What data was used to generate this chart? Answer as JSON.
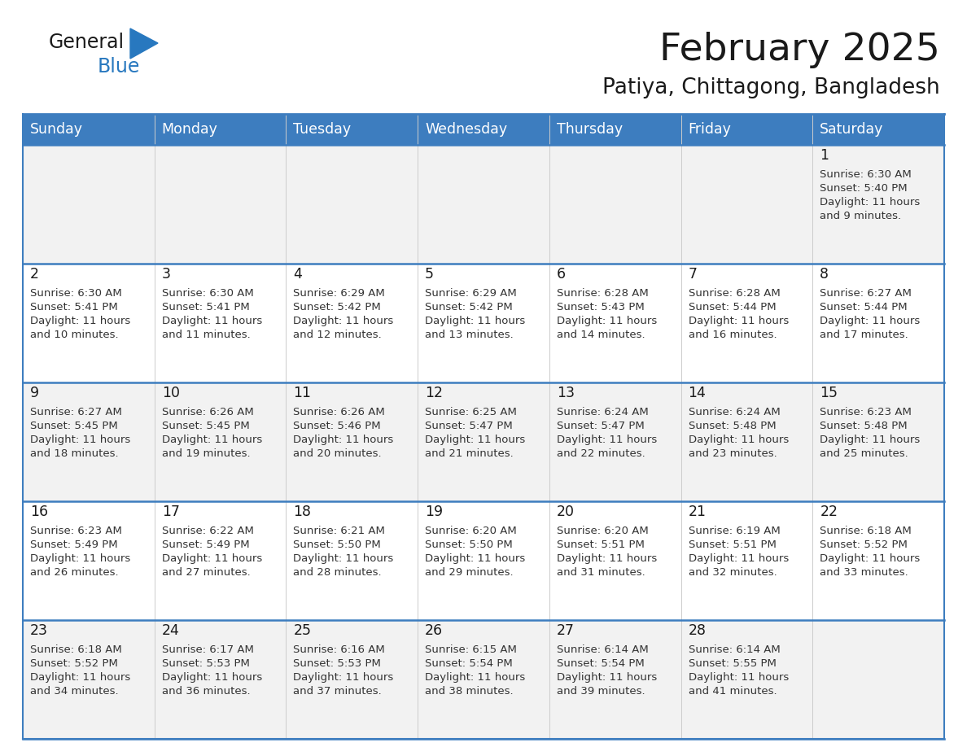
{
  "title": "February 2025",
  "subtitle": "Patiya, Chittagong, Bangladesh",
  "header_color": "#3d7dbf",
  "header_text_color": "#ffffff",
  "row0_bg": "#e8e8e8",
  "row_odd_bg": "#f2f2f2",
  "row_even_bg": "#ffffff",
  "border_color": "#3d7dbf",
  "days_of_week": [
    "Sunday",
    "Monday",
    "Tuesday",
    "Wednesday",
    "Thursday",
    "Friday",
    "Saturday"
  ],
  "title_color": "#1a1a1a",
  "subtitle_color": "#1a1a1a",
  "day_num_color": "#1a1a1a",
  "info_color": "#333333",
  "logo_general_color": "#1a1a1a",
  "logo_blue_color": "#2878bf",
  "calendar": [
    [
      null,
      null,
      null,
      null,
      null,
      null,
      {
        "day": 1,
        "sunrise": "6:30 AM",
        "sunset": "5:40 PM",
        "daylight": "11 hours and 9 minutes."
      }
    ],
    [
      {
        "day": 2,
        "sunrise": "6:30 AM",
        "sunset": "5:41 PM",
        "daylight": "11 hours and 10 minutes."
      },
      {
        "day": 3,
        "sunrise": "6:30 AM",
        "sunset": "5:41 PM",
        "daylight": "11 hours and 11 minutes."
      },
      {
        "day": 4,
        "sunrise": "6:29 AM",
        "sunset": "5:42 PM",
        "daylight": "11 hours and 12 minutes."
      },
      {
        "day": 5,
        "sunrise": "6:29 AM",
        "sunset": "5:42 PM",
        "daylight": "11 hours and 13 minutes."
      },
      {
        "day": 6,
        "sunrise": "6:28 AM",
        "sunset": "5:43 PM",
        "daylight": "11 hours and 14 minutes."
      },
      {
        "day": 7,
        "sunrise": "6:28 AM",
        "sunset": "5:44 PM",
        "daylight": "11 hours and 16 minutes."
      },
      {
        "day": 8,
        "sunrise": "6:27 AM",
        "sunset": "5:44 PM",
        "daylight": "11 hours and 17 minutes."
      }
    ],
    [
      {
        "day": 9,
        "sunrise": "6:27 AM",
        "sunset": "5:45 PM",
        "daylight": "11 hours and 18 minutes."
      },
      {
        "day": 10,
        "sunrise": "6:26 AM",
        "sunset": "5:45 PM",
        "daylight": "11 hours and 19 minutes."
      },
      {
        "day": 11,
        "sunrise": "6:26 AM",
        "sunset": "5:46 PM",
        "daylight": "11 hours and 20 minutes."
      },
      {
        "day": 12,
        "sunrise": "6:25 AM",
        "sunset": "5:47 PM",
        "daylight": "11 hours and 21 minutes."
      },
      {
        "day": 13,
        "sunrise": "6:24 AM",
        "sunset": "5:47 PM",
        "daylight": "11 hours and 22 minutes."
      },
      {
        "day": 14,
        "sunrise": "6:24 AM",
        "sunset": "5:48 PM",
        "daylight": "11 hours and 23 minutes."
      },
      {
        "day": 15,
        "sunrise": "6:23 AM",
        "sunset": "5:48 PM",
        "daylight": "11 hours and 25 minutes."
      }
    ],
    [
      {
        "day": 16,
        "sunrise": "6:23 AM",
        "sunset": "5:49 PM",
        "daylight": "11 hours and 26 minutes."
      },
      {
        "day": 17,
        "sunrise": "6:22 AM",
        "sunset": "5:49 PM",
        "daylight": "11 hours and 27 minutes."
      },
      {
        "day": 18,
        "sunrise": "6:21 AM",
        "sunset": "5:50 PM",
        "daylight": "11 hours and 28 minutes."
      },
      {
        "day": 19,
        "sunrise": "6:20 AM",
        "sunset": "5:50 PM",
        "daylight": "11 hours and 29 minutes."
      },
      {
        "day": 20,
        "sunrise": "6:20 AM",
        "sunset": "5:51 PM",
        "daylight": "11 hours and 31 minutes."
      },
      {
        "day": 21,
        "sunrise": "6:19 AM",
        "sunset": "5:51 PM",
        "daylight": "11 hours and 32 minutes."
      },
      {
        "day": 22,
        "sunrise": "6:18 AM",
        "sunset": "5:52 PM",
        "daylight": "11 hours and 33 minutes."
      }
    ],
    [
      {
        "day": 23,
        "sunrise": "6:18 AM",
        "sunset": "5:52 PM",
        "daylight": "11 hours and 34 minutes."
      },
      {
        "day": 24,
        "sunrise": "6:17 AM",
        "sunset": "5:53 PM",
        "daylight": "11 hours and 36 minutes."
      },
      {
        "day": 25,
        "sunrise": "6:16 AM",
        "sunset": "5:53 PM",
        "daylight": "11 hours and 37 minutes."
      },
      {
        "day": 26,
        "sunrise": "6:15 AM",
        "sunset": "5:54 PM",
        "daylight": "11 hours and 38 minutes."
      },
      {
        "day": 27,
        "sunrise": "6:14 AM",
        "sunset": "5:54 PM",
        "daylight": "11 hours and 39 minutes."
      },
      {
        "day": 28,
        "sunrise": "6:14 AM",
        "sunset": "5:55 PM",
        "daylight": "11 hours and 41 minutes."
      },
      null
    ]
  ]
}
